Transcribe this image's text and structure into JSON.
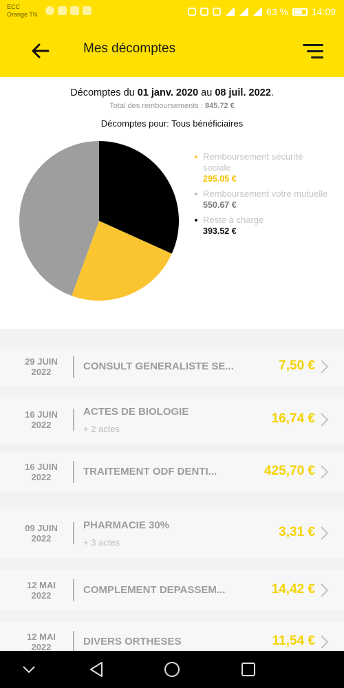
{
  "status_bar": {
    "carrier_1": "ECC",
    "carrier_2": "Orange TN",
    "battery": "63 %",
    "time": "14:09"
  },
  "header": {
    "title": "Mes décomptes"
  },
  "summary": {
    "period_prefix": "Décomptes du ",
    "period_start": "01 janv. 2020",
    "period_mid": " au ",
    "period_end": "08 juil. 2022",
    "period_suffix": ".",
    "total_label": "Total des remboursements : ",
    "total_value": "845.72 €",
    "beneficiaries": "Décomptes pour: Tous bénéficiaires"
  },
  "colors": {
    "brand_yellow": "#ffe000",
    "secu": "#fbc531",
    "mutuelle": "#9e9e9f",
    "reste": "#000000",
    "amount_yellow": "#f5d300"
  },
  "chart_data": {
    "type": "pie",
    "slices": [
      {
        "label": "Remboursement sécurité sociale",
        "display_value": "295.05 €",
        "value": 295.05,
        "color": "#fbc531"
      },
      {
        "label": "Remboursement votre mutuelle",
        "display_value": "550.67 €",
        "value": 550.67,
        "color": "#9e9e9f"
      },
      {
        "label": "Reste à charge",
        "display_value": "393.52 €",
        "value": 393.52,
        "color": "#000000"
      }
    ],
    "legend_position": "right"
  },
  "records": [
    {
      "date_line1": "29 JUIN",
      "date_line2": "2022",
      "label": "CONSULT GENERALISTE SE...",
      "sub": "",
      "amount": "7,50 €"
    },
    {
      "date_line1": "16 JUIN",
      "date_line2": "2022",
      "label": "ACTES DE BIOLOGIE",
      "sub": "+ 2 actes",
      "amount": "16,74 €"
    },
    {
      "date_line1": "16 JUIN",
      "date_line2": "2022",
      "label": "TRAITEMENT ODF DENTI...",
      "sub": "",
      "amount": "425,70 €"
    },
    {
      "date_line1": "09 JUIN",
      "date_line2": "2022",
      "label": "PHARMACIE 30%",
      "sub": "+ 3 actes",
      "amount": "3,31 €"
    },
    {
      "date_line1": "12 MAI",
      "date_line2": "2022",
      "label": "COMPLEMENT DEPASSEM...",
      "sub": "",
      "amount": "14,42 €"
    },
    {
      "date_line1": "12 MAI",
      "date_line2": "2022",
      "label": "DIVERS ORTHESES",
      "sub": "",
      "amount": "11,54 €"
    }
  ],
  "icons": {
    "back": "arrow-left-icon",
    "menu": "hamburger-icon",
    "chevron": "chevron-right-icon",
    "nav_down": "chevron-down-icon",
    "nav_back": "triangle-back-icon",
    "nav_home": "circle-home-icon",
    "nav_recent": "square-recent-icon"
  }
}
